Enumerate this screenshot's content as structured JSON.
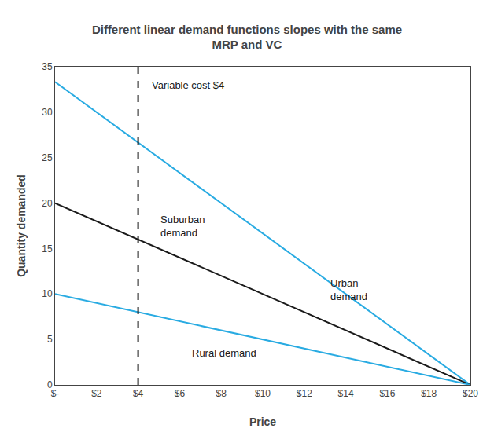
{
  "chart_data": {
    "type": "line",
    "title": "Different linear demand functions slopes with the same\nMRP and VC",
    "xlabel": "Price",
    "ylabel": "Quantity demanded",
    "xlim": [
      0,
      20
    ],
    "ylim": [
      0,
      35
    ],
    "xticks": [
      {
        "value": 0,
        "label": "$-"
      },
      {
        "value": 2,
        "label": "$2"
      },
      {
        "value": 4,
        "label": "$4"
      },
      {
        "value": 6,
        "label": "$6"
      },
      {
        "value": 8,
        "label": "$8"
      },
      {
        "value": 10,
        "label": "$10"
      },
      {
        "value": 12,
        "label": "$12"
      },
      {
        "value": 14,
        "label": "$14"
      },
      {
        "value": 16,
        "label": "$16"
      },
      {
        "value": 18,
        "label": "$18"
      },
      {
        "value": 20,
        "label": "$20"
      }
    ],
    "yticks": [
      0,
      5,
      10,
      15,
      20,
      25,
      30,
      35
    ],
    "grid": false,
    "series": [
      {
        "x": [
          0,
          20
        ],
        "values": [
          33.333,
          0
        ],
        "color": "#29ABE2",
        "line_style": "solid"
      },
      {
        "x": [
          0,
          20
        ],
        "values": [
          20,
          0
        ],
        "color": "#1a1a1a",
        "line_style": "solid"
      },
      {
        "x": [
          0,
          20
        ],
        "values": [
          10,
          0
        ],
        "color": "#29ABE2",
        "line_style": "solid"
      },
      {
        "x": [
          4,
          4
        ],
        "values": [
          0,
          35
        ],
        "color": "#1a1a1a",
        "line_style": "dashed"
      }
    ],
    "annotations": [
      {
        "text": "Urban\ndemand",
        "x": 13.2,
        "y": 10.5
      },
      {
        "text": "Suburban\ndemand",
        "x": 5.0,
        "y": 17.5
      },
      {
        "text": "Rural demand",
        "x": 6.5,
        "y": 3.5
      },
      {
        "text": "Variable cost $4",
        "x": 4.6,
        "y": 33.0
      }
    ]
  }
}
